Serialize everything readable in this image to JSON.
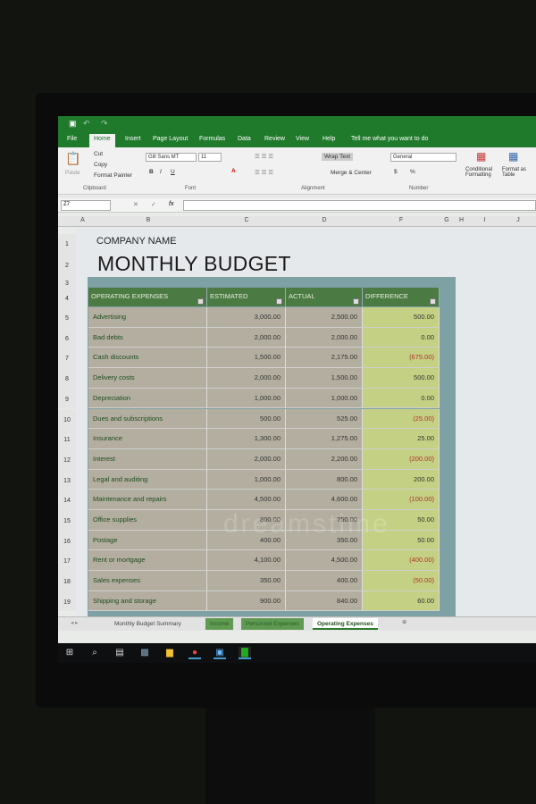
{
  "ribbon": {
    "tabs": [
      "File",
      "Home",
      "Insert",
      "Page Layout",
      "Formulas",
      "Data",
      "Review",
      "View",
      "Help"
    ],
    "tell_me": "Tell me what you want to do",
    "clipboard": {
      "paste": "Paste",
      "cut": "Cut",
      "copy": "Copy",
      "format_painter": "Format Painter",
      "group": "Clipboard"
    },
    "font": {
      "name": "Gill Sans MT",
      "size": "11",
      "group": "Font",
      "bold": "B",
      "italic": "I",
      "underline": "U"
    },
    "alignment": {
      "wrap": "Wrap Text",
      "merge": "Merge & Center",
      "group": "Alignment"
    },
    "number": {
      "format": "General",
      "currency": "$",
      "percent": "%",
      "group": "Number"
    },
    "styles": {
      "conditional": "Conditional Formatting",
      "format_table": "Format as Table"
    }
  },
  "formula_bar": {
    "name_box": "Z7",
    "value": ""
  },
  "columns": [
    "A",
    "B",
    "C",
    "D",
    "F",
    "G",
    "H",
    "I",
    "J"
  ],
  "sheet": {
    "company": "COMPANY NAME",
    "title": "MONTHLY BUDGET",
    "headers": [
      "OPERATING EXPENSES",
      "ESTIMATED",
      "ACTUAL",
      "DIFFERENCE"
    ],
    "rows": [
      {
        "n": "5",
        "name": "Advertising",
        "est": "3,000.00",
        "act": "2,500.00",
        "diff": "500.00",
        "neg": false
      },
      {
        "n": "6",
        "name": "Bad debts",
        "est": "2,000.00",
        "act": "2,000.00",
        "diff": "0.00",
        "neg": false
      },
      {
        "n": "7",
        "name": "Cash discounts",
        "est": "1,500.00",
        "act": "2,175.00",
        "diff": "(675.00)",
        "neg": true
      },
      {
        "n": "8",
        "name": "Delivery costs",
        "est": "2,000.00",
        "act": "1,500.00",
        "diff": "500.00",
        "neg": false
      },
      {
        "n": "9",
        "name": "Depreciation",
        "est": "1,000.00",
        "act": "1,000.00",
        "diff": "0.00",
        "neg": false
      },
      {
        "n": "10",
        "name": "Dues and subscriptions",
        "est": "500.00",
        "act": "525.00",
        "diff": "(25.00)",
        "neg": true
      },
      {
        "n": "11",
        "name": "Insurance",
        "est": "1,300.00",
        "act": "1,275.00",
        "diff": "25.00",
        "neg": false
      },
      {
        "n": "12",
        "name": "Interest",
        "est": "2,000.00",
        "act": "2,200.00",
        "diff": "(200.00)",
        "neg": true
      },
      {
        "n": "13",
        "name": "Legal and auditing",
        "est": "1,000.00",
        "act": "800.00",
        "diff": "200.00",
        "neg": false
      },
      {
        "n": "14",
        "name": "Maintenance and repairs",
        "est": "4,500.00",
        "act": "4,600.00",
        "diff": "(100.00)",
        "neg": true
      },
      {
        "n": "15",
        "name": "Office supplies",
        "est": "800.00",
        "act": "750.00",
        "diff": "50.00",
        "neg": false
      },
      {
        "n": "16",
        "name": "Postage",
        "est": "400.00",
        "act": "350.00",
        "diff": "50.00",
        "neg": false
      },
      {
        "n": "17",
        "name": "Rent or mortgage",
        "est": "4,100.00",
        "act": "4,500.00",
        "diff": "(400.00)",
        "neg": true
      },
      {
        "n": "18",
        "name": "Sales expenses",
        "est": "350.00",
        "act": "400.00",
        "diff": "(50.00)",
        "neg": true
      },
      {
        "n": "19",
        "name": "Shipping and storage",
        "est": "900.00",
        "act": "840.00",
        "diff": "60.00",
        "neg": false
      }
    ]
  },
  "sheet_tabs": [
    "Monthly Budget Summary",
    "Income",
    "Personnel Expenses",
    "Operating Expenses"
  ],
  "active_sheet": "Operating Expenses",
  "watermark": "dreamstime",
  "colors": {
    "ribbon_green": "#1f7a2c",
    "header_green": "#4c7a43",
    "difference_fill": "#c4d184",
    "negative": "#b0332b"
  }
}
